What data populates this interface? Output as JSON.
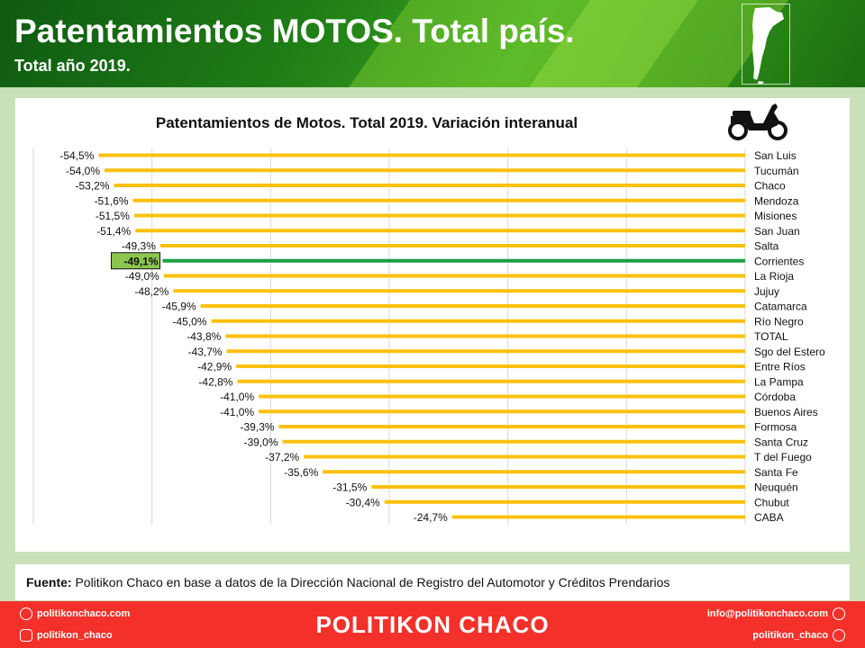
{
  "header": {
    "title": "Patentamientos MOTOS. Total país.",
    "subtitle": "Total año 2019."
  },
  "colors": {
    "bar": "#fcc10e",
    "highlight_bar": "#1fa046",
    "highlight_label_bg": "#8bc64e",
    "grid": "#d9d9d9"
  },
  "chart_data": {
    "type": "bar",
    "orientation": "horizontal",
    "title": "Patentamientos de Motos. Total 2019. Variación interanual",
    "grid": true,
    "highlight": "Corrientes",
    "categories": [
      "San Luis",
      "Tucumán",
      "Chaco",
      "Mendoza",
      "Misiones",
      "San Juan",
      "Salta",
      "Corrientes",
      "La Rioja",
      "Jujuy",
      "Catamarca",
      "Río Negro",
      "TOTAL",
      "Sgo del Estero",
      "Entre Ríos",
      "La Pampa",
      "Córdoba",
      "Buenos Aires",
      "Formosa",
      "Santa Cruz",
      "T del Fuego",
      "Santa Fe",
      "Neuquén",
      "Chubut",
      "CABA"
    ],
    "values": [
      -54.5,
      -54.0,
      -53.2,
      -51.6,
      -51.5,
      -51.4,
      -49.3,
      -49.1,
      -49.0,
      -48.2,
      -45.9,
      -45.0,
      -43.8,
      -43.7,
      -42.9,
      -42.8,
      -41.0,
      -41.0,
      -39.3,
      -39.0,
      -37.2,
      -35.6,
      -31.5,
      -30.4,
      -24.7
    ],
    "labels": [
      "-54,5%",
      "-54,0%",
      "-53,2%",
      "-51,6%",
      "-51,5%",
      "-51,4%",
      "-49,3%",
      "-49,1%",
      "-49,0%",
      "-48,2%",
      "-45,9%",
      "-45,0%",
      "-43,8%",
      "-43,7%",
      "-42,9%",
      "-42,8%",
      "-41,0%",
      "-41,0%",
      "-39,3%",
      "-39,0%",
      "-37,2%",
      "-35,6%",
      "-31,5%",
      "-30,4%",
      "-24,7%"
    ],
    "xlim": [
      -60,
      0
    ]
  },
  "source": {
    "label": "Fuente:",
    "text": " Politikon Chaco en base a datos de la Dirección Nacional de Registro del Automotor  y Créditos Prendarios"
  },
  "footer": {
    "website": "politikonchaco.com",
    "instagram": "politikon_chaco",
    "brand": "POLITIKON CHACO",
    "email": "info@politikonchaco.com",
    "twitter": "politikon_chaco"
  }
}
